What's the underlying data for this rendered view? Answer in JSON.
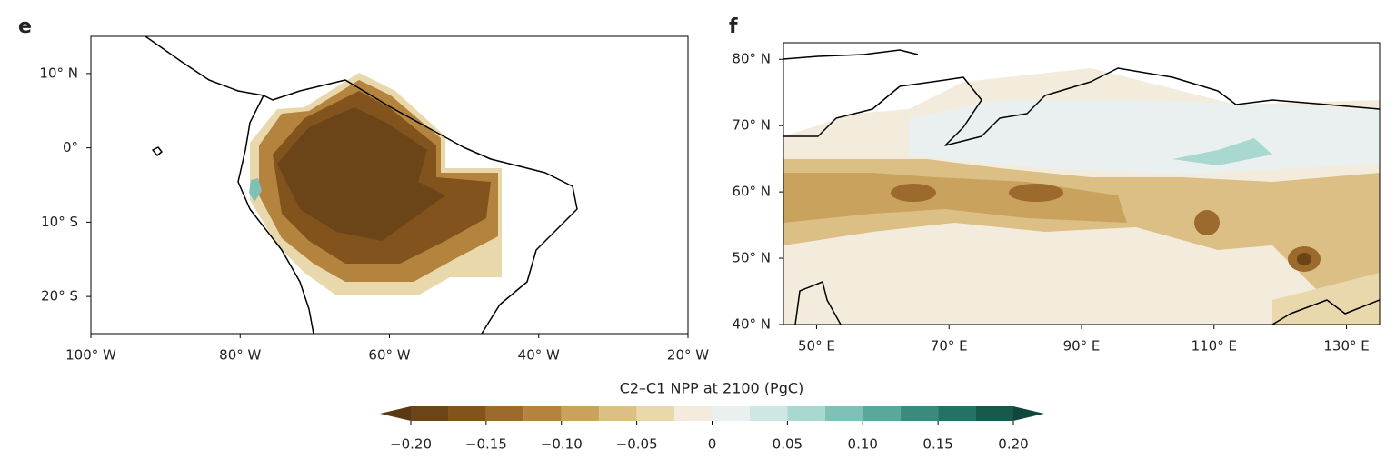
{
  "panels": [
    {
      "label": "e",
      "lonlim": [
        -100,
        -20
      ],
      "latlim": [
        -25,
        15
      ],
      "xticks": [
        {
          "value": -100,
          "label": "100° W"
        },
        {
          "value": -80,
          "label": "80° W"
        },
        {
          "value": -60,
          "label": "60° W"
        },
        {
          "value": -40,
          "label": "40° W"
        },
        {
          "value": -20,
          "label": "20° W"
        }
      ],
      "yticks": [
        {
          "value": 10,
          "label": "10° N"
        },
        {
          "value": 0,
          "label": "0°"
        },
        {
          "value": -10,
          "label": "10° S"
        },
        {
          "value": -20,
          "label": "20° S"
        }
      ]
    },
    {
      "label": "f",
      "lonlim": [
        45,
        135
      ],
      "latlim": [
        40,
        82.5
      ],
      "xticks": [
        {
          "value": 50,
          "label": "50° E"
        },
        {
          "value": 70,
          "label": "70° E"
        },
        {
          "value": 90,
          "label": "90° E"
        },
        {
          "value": 110,
          "label": "110° E"
        },
        {
          "value": 130,
          "label": "130° E"
        }
      ],
      "yticks": [
        {
          "value": 80,
          "label": "80° N"
        },
        {
          "value": 70,
          "label": "70° N"
        },
        {
          "value": 60,
          "label": "60° N"
        },
        {
          "value": 50,
          "label": "50° N"
        },
        {
          "value": 40,
          "label": "40° N"
        }
      ]
    }
  ],
  "colorbar": {
    "title": "C2–C1 NPP at 2100 (PgC)",
    "levels": [
      -0.2,
      -0.175,
      -0.15,
      -0.125,
      -0.1,
      -0.075,
      -0.05,
      -0.025,
      0,
      0.025,
      0.05,
      0.075,
      0.1,
      0.125,
      0.15,
      0.175,
      0.2
    ],
    "colors": [
      "#6b4418",
      "#82531d",
      "#9c6a2c",
      "#b4843f",
      "#c9a25e",
      "#dbbf85",
      "#ead8ad",
      "#f3ecdc",
      "#e9f0ef",
      "#cfe7e3",
      "#a9d8d0",
      "#80c1b7",
      "#5aa79b",
      "#3a8b7e",
      "#237264",
      "#17594c"
    ],
    "extend_colors": [
      "#5a3a12",
      "#0f473c"
    ],
    "ticks": [
      {
        "value": -0.2,
        "label": "−0.20"
      },
      {
        "value": -0.15,
        "label": "−0.15"
      },
      {
        "value": -0.1,
        "label": "−0.10"
      },
      {
        "value": -0.05,
        "label": "−0.05"
      },
      0,
      0.05,
      {
        "value": 0.1,
        "label": "0.10"
      },
      0.15,
      {
        "value": 0.2,
        "label": "0.20"
      }
    ]
  }
}
